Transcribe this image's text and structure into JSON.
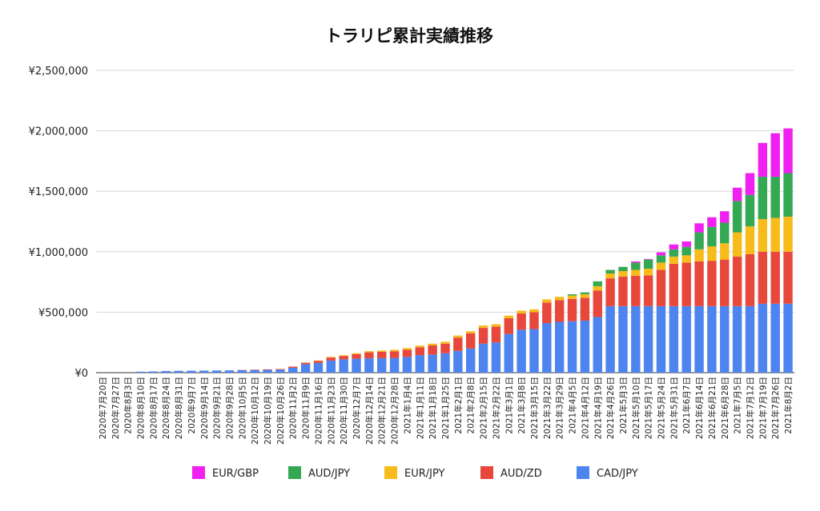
{
  "chart_data": {
    "type": "bar",
    "stacked": true,
    "title": "トラリピ累計実績推移",
    "xlabel": "",
    "ylabel": "",
    "ylim": [
      0,
      2500000
    ],
    "yticks": [
      {
        "value": 0,
        "label": "¥0"
      },
      {
        "value": 500000,
        "label": "¥500,000"
      },
      {
        "value": 1000000,
        "label": "¥1,000,000"
      },
      {
        "value": 1500000,
        "label": "¥1,500,000"
      },
      {
        "value": 2000000,
        "label": "¥2,000,000"
      },
      {
        "value": 2500000,
        "label": "¥2,500,000"
      }
    ],
    "grid": true,
    "legend_position": "bottom",
    "categories": [
      "2020年7月20日",
      "2020年7月27日",
      "2020年8月3日",
      "2020年8月10日",
      "2020年8月17日",
      "2020年8月24日",
      "2020年8月31日",
      "2020年9月7日",
      "2020年9月14日",
      "2020年9月21日",
      "2020年9月28日",
      "2020年10月5日",
      "2020年10月12日",
      "2020年10月19日",
      "2020年10月26日",
      "2020年11月2日",
      "2020年11月9日",
      "2020年11月16日",
      "2020年11月23日",
      "2020年11月30日",
      "2020年12月7日",
      "2020年12月14日",
      "2020年12月21日",
      "2020年12月28日",
      "2021年1月4日",
      "2021年1月11日",
      "2021年1月18日",
      "2021年1月25日",
      "2021年2月1日",
      "2021年2月8日",
      "2021年2月15日",
      "2021年2月22日",
      "2021年3月1日",
      "2021年3月8日",
      "2021年3月15日",
      "2021年3月22日",
      "2021年3月29日",
      "2021年4月5日",
      "2021年4月12日",
      "2021年4月19日",
      "2021年4月26日",
      "2021年5月3日",
      "2021年5月10日",
      "2021年5月17日",
      "2021年5月24日",
      "2021年5月31日",
      "2021年6月7日",
      "2021年6月14日",
      "2021年6月21日",
      "2021年6月28日",
      "2021年7月5日",
      "2021年7月12日",
      "2021年7月19日",
      "2021年7月26日",
      "2021年8月2日"
    ],
    "series": [
      {
        "name": "CAD/JPY",
        "color": "#4d84f0",
        "values": [
          0,
          0,
          0,
          8000,
          10000,
          14000,
          15000,
          16000,
          17000,
          18000,
          19000,
          21000,
          22000,
          23000,
          25000,
          40000,
          70000,
          80000,
          100000,
          110000,
          115000,
          118000,
          120000,
          122000,
          130000,
          145000,
          150000,
          160000,
          180000,
          200000,
          240000,
          250000,
          320000,
          355000,
          360000,
          410000,
          420000,
          425000,
          430000,
          460000,
          550000,
          550000,
          550000,
          550000,
          550000,
          550000,
          550000,
          550000,
          550000,
          550000,
          550000,
          550000,
          570000,
          570000,
          570000
        ]
      },
      {
        "name": "AUD/ZD",
        "color": "#e8473c",
        "values": [
          0,
          0,
          0,
          0,
          0,
          0,
          0,
          0,
          0,
          0,
          0,
          2000,
          3000,
          4000,
          5000,
          10000,
          12000,
          18000,
          25000,
          28000,
          38000,
          50000,
          52000,
          55000,
          60000,
          65000,
          75000,
          80000,
          110000,
          125000,
          130000,
          130000,
          130000,
          135000,
          140000,
          170000,
          180000,
          185000,
          190000,
          220000,
          230000,
          245000,
          250000,
          255000,
          300000,
          350000,
          360000,
          370000,
          375000,
          385000,
          410000,
          430000,
          430000,
          430000,
          430000
        ]
      },
      {
        "name": "EUR/JPY",
        "color": "#f7bb1b",
        "values": [
          0,
          0,
          0,
          0,
          0,
          0,
          0,
          0,
          0,
          0,
          0,
          0,
          0,
          0,
          0,
          0,
          2000,
          3000,
          5000,
          6000,
          8000,
          10000,
          11000,
          12000,
          13000,
          14000,
          15000,
          16000,
          17000,
          18000,
          20000,
          21000,
          22000,
          23000,
          24000,
          26000,
          27000,
          28000,
          29000,
          35000,
          40000,
          45000,
          50000,
          55000,
          60000,
          60000,
          60000,
          100000,
          120000,
          135000,
          200000,
          230000,
          270000,
          280000,
          290000
        ]
      },
      {
        "name": "AUD/JPY",
        "color": "#34a853",
        "values": [
          0,
          0,
          0,
          0,
          0,
          0,
          0,
          0,
          0,
          0,
          0,
          0,
          0,
          0,
          0,
          0,
          0,
          0,
          0,
          0,
          0,
          0,
          0,
          0,
          0,
          0,
          0,
          0,
          0,
          0,
          0,
          0,
          0,
          0,
          0,
          0,
          0,
          10000,
          15000,
          40000,
          30000,
          35000,
          60000,
          75000,
          60000,
          60000,
          70000,
          140000,
          160000,
          170000,
          260000,
          260000,
          350000,
          340000,
          360000
        ]
      },
      {
        "name": "EUR/GBP",
        "color": "#f020f0",
        "values": [
          0,
          0,
          0,
          0,
          0,
          0,
          0,
          0,
          0,
          0,
          0,
          0,
          0,
          0,
          0,
          0,
          0,
          0,
          0,
          0,
          0,
          0,
          0,
          0,
          0,
          0,
          0,
          0,
          0,
          0,
          0,
          0,
          0,
          0,
          0,
          0,
          0,
          0,
          0,
          0,
          0,
          0,
          10000,
          5000,
          25000,
          40000,
          45000,
          75000,
          80000,
          95000,
          110000,
          180000,
          280000,
          360000,
          370000
        ]
      }
    ],
    "legend_order": [
      "EUR/GBP",
      "AUD/JPY",
      "EUR/JPY",
      "AUD/ZD",
      "CAD/JPY"
    ]
  }
}
